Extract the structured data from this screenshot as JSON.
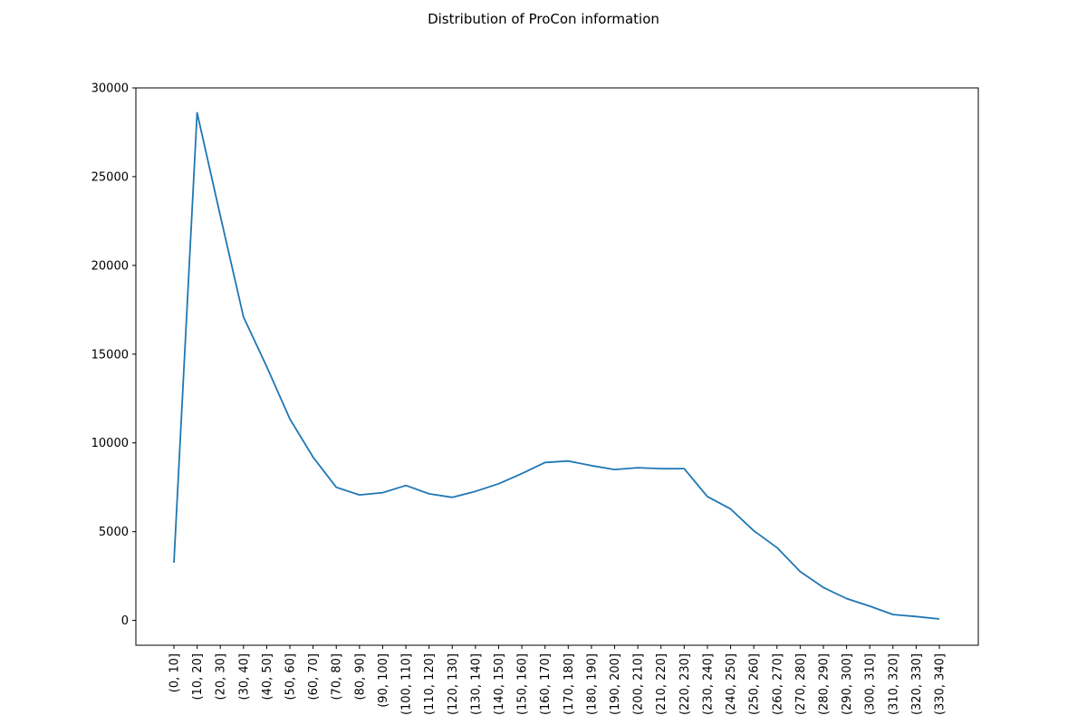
{
  "chart_data": {
    "type": "line",
    "title": "Distribution of ProCon information",
    "xlabel": "",
    "ylabel": "",
    "categories": [
      "(0, 10]",
      "(10, 20]",
      "(20, 30]",
      "(30, 40]",
      "(40, 50]",
      "(50, 60]",
      "(60, 70]",
      "(70, 80]",
      "(80, 90]",
      "(90, 100]",
      "(100, 110]",
      "(110, 120]",
      "(120, 130]",
      "(130, 140]",
      "(140, 150]",
      "(150, 160]",
      "(160, 170]",
      "(170, 180]",
      "(180, 190]",
      "(190, 200]",
      "(200, 210]",
      "(210, 220]",
      "(220, 230]",
      "(230, 240]",
      "(240, 250]",
      "(250, 260]",
      "(260, 270]",
      "(270, 280]",
      "(280, 290]",
      "(290, 300]",
      "(300, 310]",
      "(310, 320]",
      "(320, 330]",
      "(330, 340]"
    ],
    "values": [
      3250,
      28600,
      22800,
      17100,
      14300,
      11350,
      9200,
      7500,
      7070,
      7200,
      7600,
      7130,
      6930,
      7270,
      7700,
      8270,
      8900,
      8980,
      8720,
      8500,
      8600,
      8550,
      8550,
      6980,
      6280,
      5050,
      4100,
      2750,
      1850,
      1230,
      800,
      330,
      220,
      80
    ],
    "ylim": [
      -1400,
      30000
    ],
    "yticks": [
      0,
      5000,
      10000,
      15000,
      20000,
      25000,
      30000
    ],
    "series_color": "#1f77b4",
    "grid": false,
    "legend": "none"
  }
}
